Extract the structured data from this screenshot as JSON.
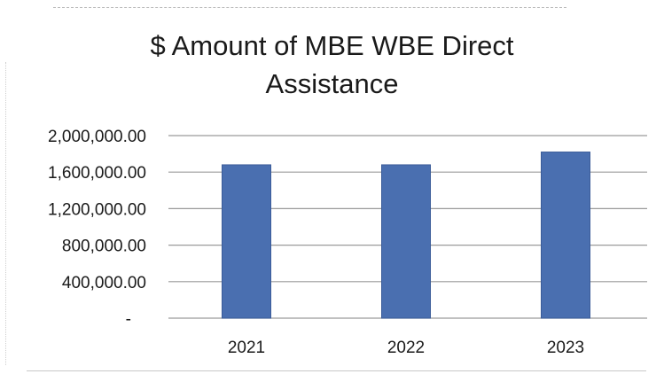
{
  "chart_data": {
    "type": "bar",
    "title": "$ Amount of MBE WBE Direct Assistance",
    "title_lines": [
      "$ Amount of MBE WBE Direct",
      "Assistance"
    ],
    "xlabel": "",
    "ylabel": "",
    "categories": [
      "2021",
      "2022",
      "2023"
    ],
    "values": [
      1680000,
      1680000,
      1820000
    ],
    "ylim": [
      0,
      2000000
    ],
    "y_ticks": [
      0,
      400000,
      800000,
      1200000,
      1600000,
      2000000
    ],
    "y_tick_labels": [
      "-",
      "400,000.00",
      "800,000.00",
      "1,200,000.00",
      "1,600,000.00",
      "2,000,000.00"
    ],
    "grid": true,
    "legend": "none",
    "colors": {
      "bar": "#4a6fb0",
      "bar_edge": "#3b5c99",
      "grid": "#9a9a9a",
      "text": "#1a1a1a"
    }
  }
}
